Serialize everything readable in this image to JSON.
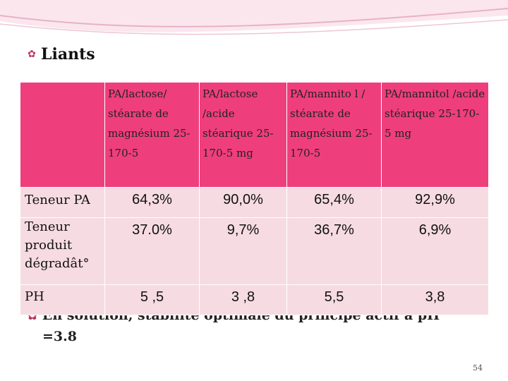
{
  "slide": {
    "title": "Liants",
    "page_number": "54",
    "hidden_bullet_line1": "En solution, stabilité optimale du principe actif à pH",
    "hidden_bullet_line2": "=3.8"
  },
  "table": {
    "header": [
      "",
      "PA/lactose/ stéarate de magnésium 25-170-5",
      "PA/lactose /acide stéarique 25-170-5 mg",
      "PA/mannito l / stéarate de magnésium 25-170-5",
      "PA/mannitol /acide stéarique 25-170-5 mg"
    ],
    "rows": [
      {
        "label": "Teneur PA",
        "values": [
          "64,3%",
          "90,0%",
          "65,4%",
          "92,9%"
        ]
      },
      {
        "label": "Teneur produit dégradât°",
        "values": [
          "37.0%",
          "9,7%",
          "36,7%",
          "6,9%"
        ]
      },
      {
        "label": "PH",
        "values": [
          "5 ,5",
          "3 ,8",
          "5,5",
          "3,8"
        ]
      }
    ]
  },
  "colors": {
    "header_bg": "#ef3e7c",
    "body_bg": "#f6dbe2",
    "accent": "#c0305f"
  }
}
